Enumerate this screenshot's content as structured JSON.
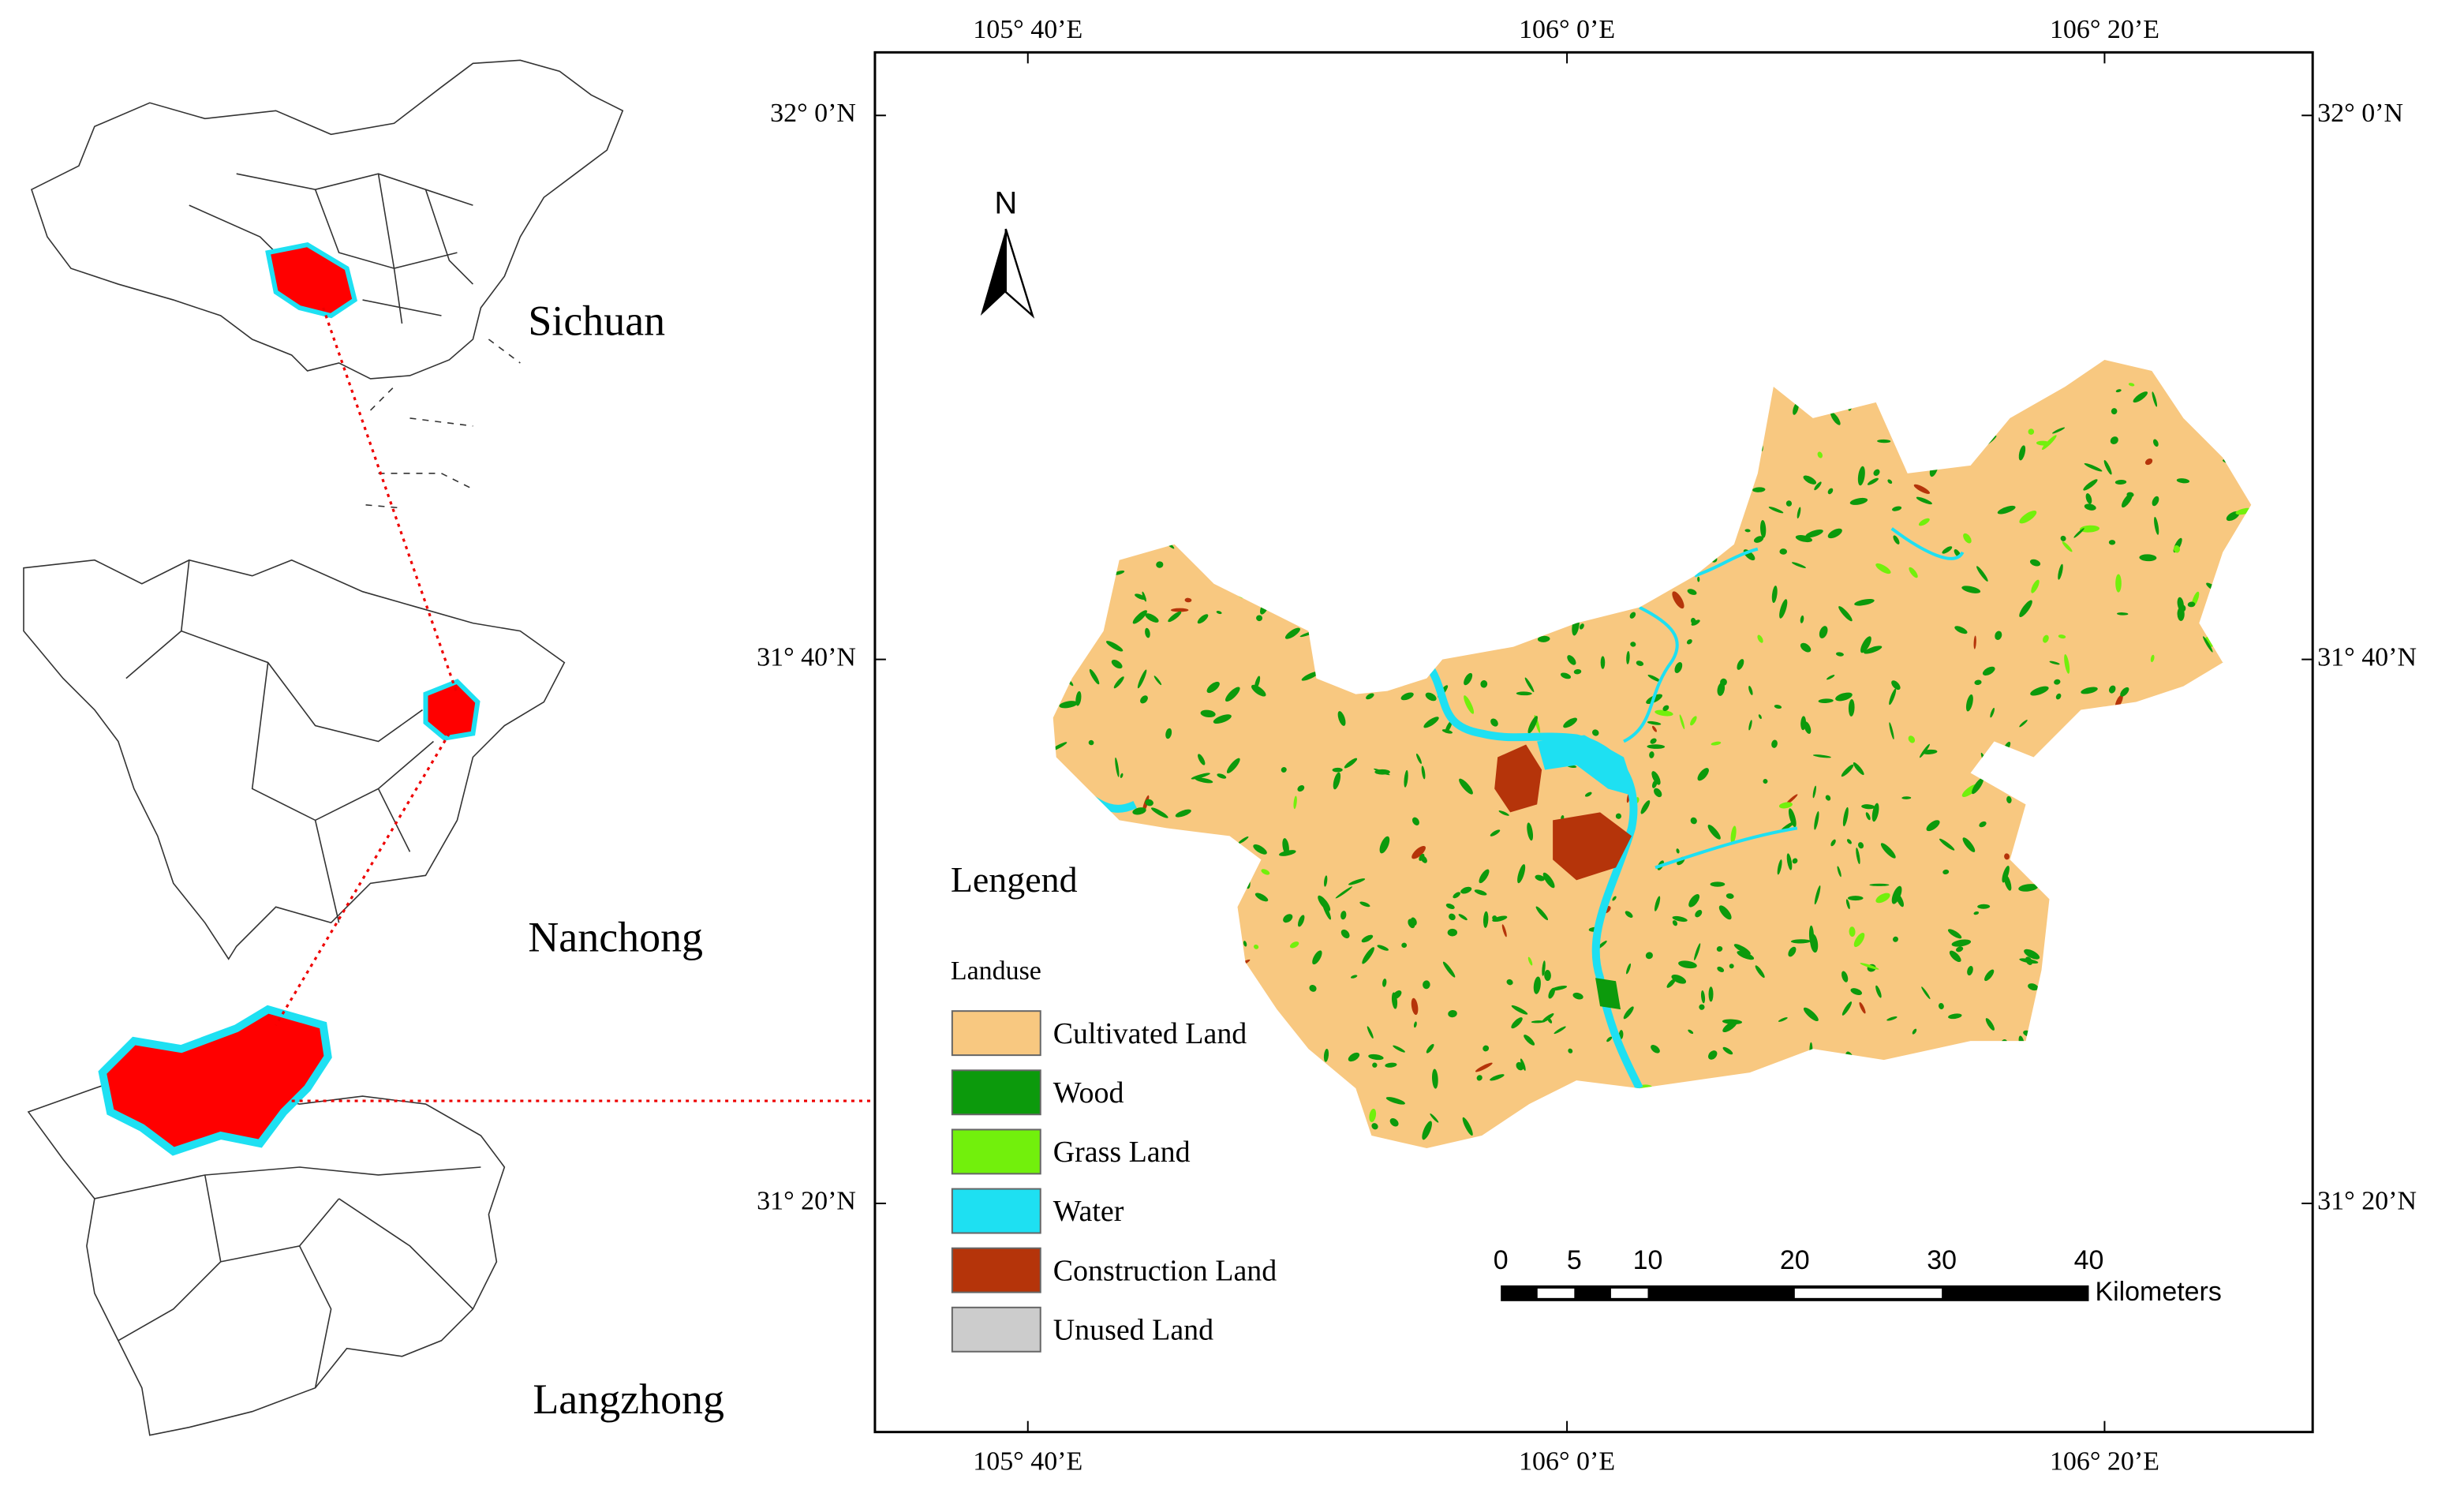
{
  "insets": [
    {
      "label": "Sichuan"
    },
    {
      "label": "Nanchong"
    },
    {
      "label": "Langzhong"
    }
  ],
  "map": {
    "longitude_labels": [
      "105° 40’E",
      "106° 0’E",
      "106° 20’E"
    ],
    "latitude_labels": [
      "32° 0’N",
      "31° 40’N",
      "31° 20’N"
    ],
    "north_arrow": "N",
    "legend": {
      "title": "Lengend",
      "subtitle": "Landuse",
      "items": [
        {
          "label": "Cultivated Land",
          "color": "#f8c880"
        },
        {
          "label": "Wood",
          "color": "#0c9a0c"
        },
        {
          "label": "Grass Land",
          "color": "#72f00c"
        },
        {
          "label": "Water",
          "color": "#1ee0f2"
        },
        {
          "label": "Construction Land",
          "color": "#b5340a"
        },
        {
          "label": "Unused Land",
          "color": "#cccccc"
        }
      ]
    },
    "scale_bar": {
      "ticks": [
        0,
        5,
        10,
        20,
        30,
        40
      ],
      "unit": "Kilometers"
    }
  }
}
